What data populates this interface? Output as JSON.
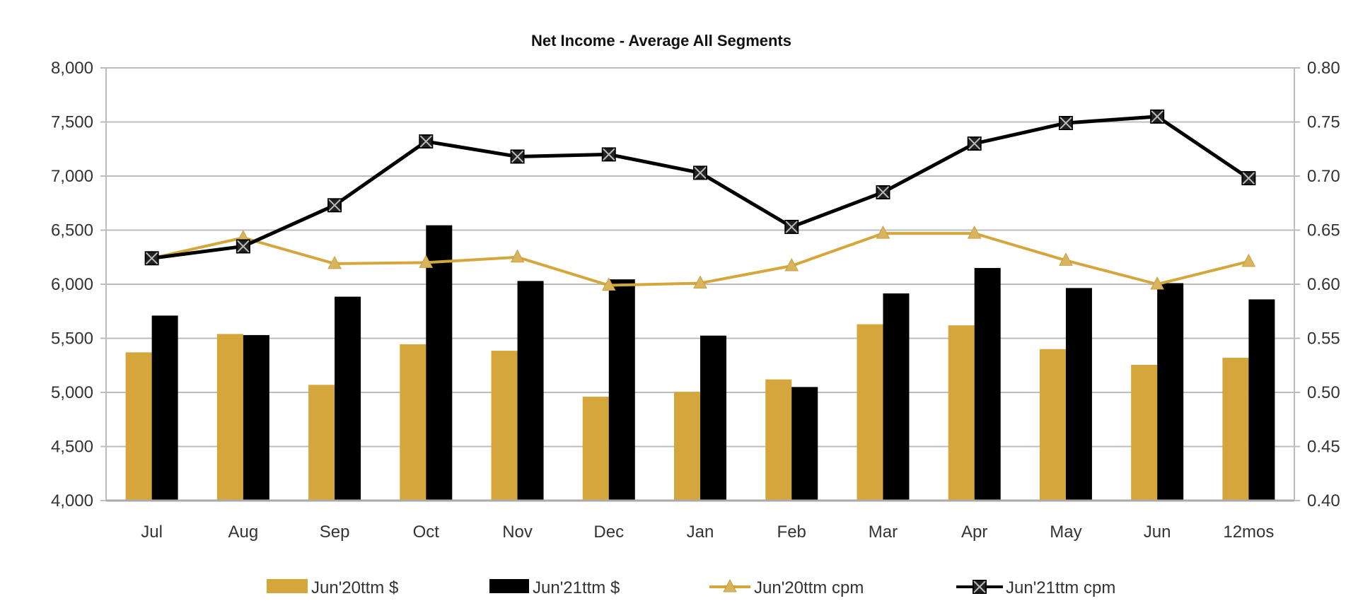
{
  "chart_data": {
    "type": "bar",
    "title": "Net Income - Average All Segments",
    "categories": [
      "Jul",
      "Aug",
      "Sep",
      "Oct",
      "Nov",
      "Dec",
      "Jan",
      "Feb",
      "Mar",
      "Apr",
      "May",
      "Jun",
      "12mos"
    ],
    "y_left": {
      "min": 4000,
      "max": 8000,
      "step": 500,
      "tick_labels": [
        "4,000",
        "4,500",
        "5,000",
        "5,500",
        "6,000",
        "6,500",
        "7,000",
        "7,500",
        "8,000"
      ]
    },
    "y_right": {
      "min": 0.4,
      "max": 0.8,
      "step": 0.05,
      "tick_labels": [
        "0.40",
        "0.45",
        "0.50",
        "0.55",
        "0.60",
        "0.65",
        "0.70",
        "0.75",
        "0.80"
      ]
    },
    "grid": true,
    "legend_position": "bottom",
    "series": [
      {
        "name": "Jun'20ttm $",
        "kind": "bar",
        "axis": "left",
        "color": "#D4A63C",
        "values": [
          5370,
          5540,
          5070,
          5445,
          5385,
          4960,
          5005,
          5120,
          5630,
          5620,
          5400,
          5255,
          5320
        ]
      },
      {
        "name": "Jun'21ttm $",
        "kind": "bar",
        "axis": "left",
        "color": "#000000",
        "values": [
          5710,
          5530,
          5885,
          6545,
          6030,
          6045,
          5525,
          5050,
          5915,
          6150,
          5965,
          6010,
          5860
        ]
      },
      {
        "name": "Jun'20ttm cpm",
        "kind": "line",
        "marker": "triangle",
        "axis": "right",
        "color": "#D4A63C",
        "values": [
          0.624,
          0.643,
          0.619,
          0.62,
          0.625,
          0.599,
          0.601,
          0.617,
          0.647,
          0.647,
          0.622,
          0.6,
          0.621
        ]
      },
      {
        "name": "Jun'21ttm cpm",
        "kind": "line",
        "marker": "x-square",
        "axis": "right",
        "color": "#000000",
        "values": [
          0.624,
          0.635,
          0.673,
          0.732,
          0.718,
          0.72,
          0.703,
          0.653,
          0.685,
          0.73,
          0.749,
          0.755,
          0.698
        ]
      }
    ]
  }
}
